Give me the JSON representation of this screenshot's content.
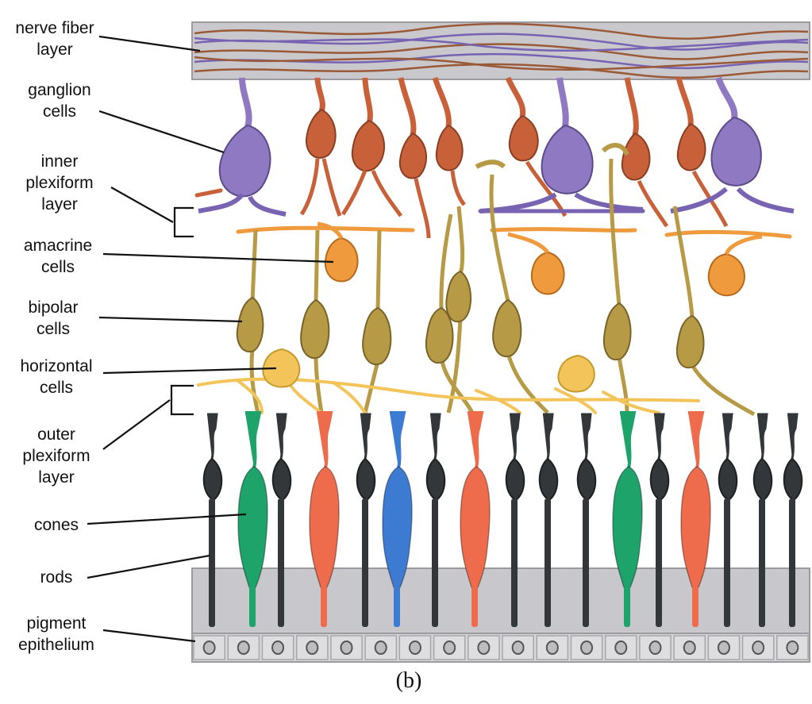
{
  "labels": {
    "nerve_fiber": [
      "nerve fiber",
      "layer"
    ],
    "ganglion": [
      "ganglion",
      "cells"
    ],
    "inner_plexiform": [
      "inner",
      "plexiform",
      "layer"
    ],
    "amacrine": [
      "amacrine",
      "cells"
    ],
    "bipolar": [
      "bipolar",
      "cells"
    ],
    "horizontal": [
      "horizontal",
      "cells"
    ],
    "outer_plexiform": [
      "outer",
      "plexiform",
      "layer"
    ],
    "cones": [
      "cones"
    ],
    "rods": [
      "rods"
    ],
    "pigment": [
      "pigment",
      "epithelium"
    ]
  },
  "caption": "(b)",
  "colors": {
    "ganglion_purple": "#8f79c2",
    "ganglion_rust": "#c8613a",
    "amacrine_orange": "#ef9a3c",
    "bipolar_olive": "#b79a45",
    "horizontal_yellow": "#f2c45a",
    "rod_black": "#33373a",
    "cone_green": "#1ea36a",
    "cone_red": "#ee6b4b",
    "cone_blue": "#3d7bd3",
    "layer_gray": "#c8c8cc",
    "epithelium_gray": "#d8d8da"
  },
  "icons": {
    "ganglion": "ganglion-cell-icon",
    "amacrine": "amacrine-cell-icon",
    "bipolar": "bipolar-cell-icon",
    "horizontal": "horizontal-cell-icon",
    "rod": "rod-cell-icon",
    "cone": "cone-cell-icon",
    "pigment": "pigment-epithelium-cell-icon"
  }
}
